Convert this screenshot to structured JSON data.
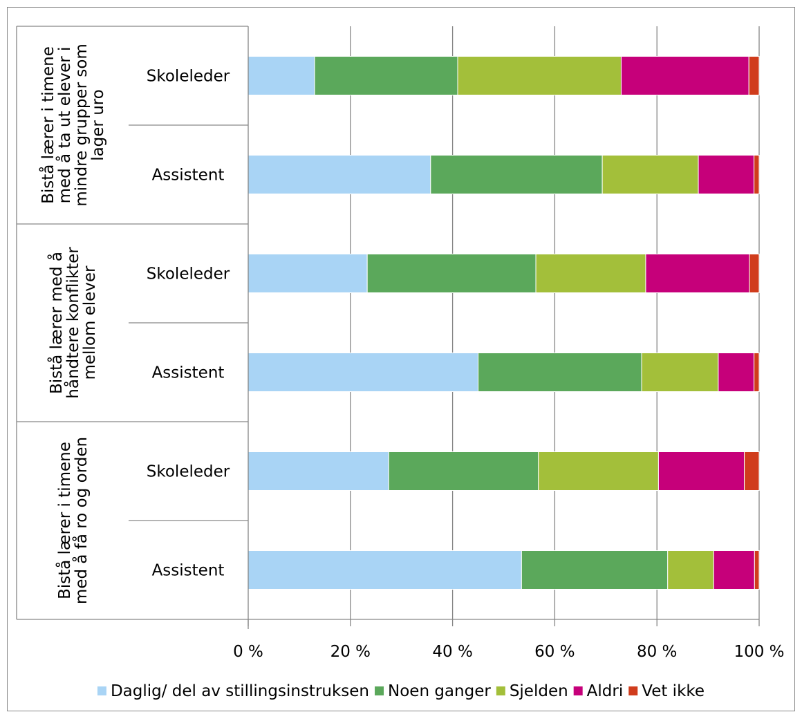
{
  "chart_data": {
    "type": "bar",
    "orientation": "horizontal",
    "stacked": true,
    "groups": [
      {
        "label_lines": [
          "Bistå lærer i timene",
          "med å ta ut elever i",
          "mindre grupper som",
          "lager uro"
        ],
        "categories": [
          "Skoleleder",
          "Assistent"
        ]
      },
      {
        "label_lines": [
          "Bistå lærer med å",
          "håndtere konflikter",
          "mellom elever"
        ],
        "categories": [
          "Skoleleder",
          "Assistent"
        ]
      },
      {
        "label_lines": [
          "Bistå lærer i timene",
          "med å få ro og orden"
        ],
        "categories": [
          "Skoleleder",
          "Assistent"
        ]
      }
    ],
    "rows": [
      {
        "group": 0,
        "category": "Skoleleder",
        "values": [
          13,
          28,
          32,
          25,
          2
        ]
      },
      {
        "group": 0,
        "category": "Assistent",
        "values": [
          35.7,
          33.6,
          18.8,
          10.9,
          1
        ]
      },
      {
        "group": 1,
        "category": "Skoleleder",
        "values": [
          23.3,
          33,
          21.5,
          20.3,
          1.9
        ]
      },
      {
        "group": 1,
        "category": "Assistent",
        "values": [
          45,
          32,
          15,
          7,
          1
        ]
      },
      {
        "group": 2,
        "category": "Skoleleder",
        "values": [
          27.5,
          29.3,
          23.5,
          16.8,
          2.9
        ]
      },
      {
        "group": 2,
        "category": "Assistent",
        "values": [
          53.5,
          28.6,
          9,
          8,
          0.9
        ]
      }
    ],
    "series": [
      {
        "name": "Daglig/ del av stillingsinstruksen",
        "color": "#a9d4f5"
      },
      {
        "name": "Noen ganger",
        "color": "#5ba85b"
      },
      {
        "name": "Sjelden",
        "color": "#a3bf3a"
      },
      {
        "name": "Aldri",
        "color": "#c6007a"
      },
      {
        "name": "Vet ikke",
        "color": "#d03c1c"
      }
    ],
    "x_ticks": [
      "0 %",
      "20 %",
      "40 %",
      "60 %",
      "80 %",
      "100 %"
    ],
    "xlim": [
      0,
      100
    ],
    "grid": true,
    "legend_position": "bottom",
    "gridline_color": "#868686",
    "border_color": "#868686"
  }
}
